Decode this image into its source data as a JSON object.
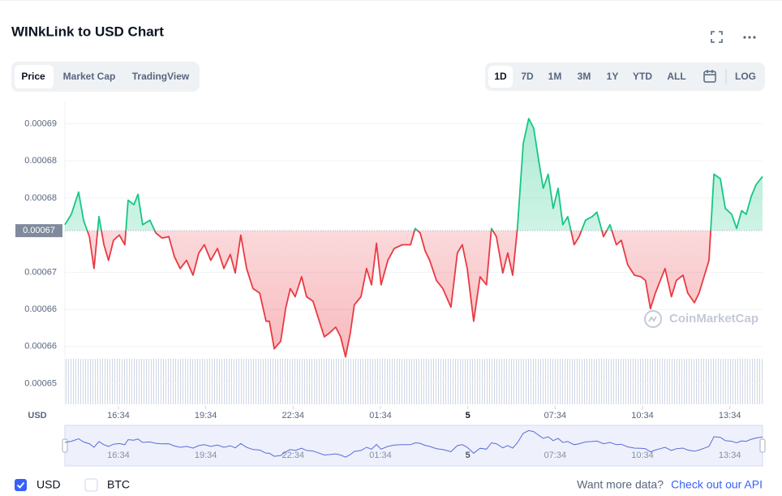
{
  "chart_data": {
    "type": "line",
    "title": "WINkLink to USD Chart",
    "y_label": "USD",
    "x": [
      14.73,
      14.95,
      15.2,
      15.37,
      15.57,
      15.73,
      15.9,
      16.07,
      16.23,
      16.4,
      16.6,
      16.79,
      16.9,
      17.1,
      17.24,
      17.4,
      17.65,
      17.85,
      18.07,
      18.3,
      18.49,
      18.69,
      18.91,
      19.13,
      19.33,
      19.52,
      19.74,
      19.97,
      20.19,
      20.41,
      20.58,
      20.77,
      20.97,
      21.19,
      21.42,
      21.64,
      21.75,
      21.92,
      22.14,
      22.31,
      22.47,
      22.64,
      22.86,
      23.03,
      23.25,
      23.42,
      23.64,
      23.81,
      24.03,
      24.2,
      24.37,
      24.53,
      24.67,
      24.9,
      25.09,
      25.26,
      25.43,
      25.59,
      25.82,
      26.04,
      26.32,
      26.6,
      26.76,
      26.93,
      27.1,
      27.26,
      27.49,
      27.71,
      27.99,
      28.21,
      28.38,
      28.55,
      28.77,
      28.99,
      29.21,
      29.38,
      29.55,
      29.77,
      29.94,
      30.11,
      30.27,
      30.47,
      30.66,
      30.83,
      31.0,
      31.16,
      31.33,
      31.5,
      31.67,
      31.83,
      32.0,
      32.22,
      32.39,
      32.61,
      32.84,
      33.0,
      33.23,
      33.45,
      33.67,
      33.84,
      34.06,
      34.29,
      34.51,
      34.67,
      34.84,
      35.01,
      35.18,
      35.34,
      35.56,
      35.73,
      35.96,
      36.12,
      36.35,
      36.51,
      36.68,
      36.85,
      37.02,
      37.24,
      37.41,
      37.63,
      37.8,
      37.97,
      38.13,
      38.3,
      38.47,
      38.69
    ],
    "series": [
      {
        "name": "Price",
        "up_color": "#16c784",
        "down_color": "#ea3943",
        "values": [
          0.0006714,
          0.0006728,
          0.0006758,
          0.000672,
          0.0006698,
          0.0006655,
          0.0006725,
          0.0006687,
          0.0006666,
          0.0006693,
          0.00067,
          0.0006687,
          0.0006747,
          0.0006741,
          0.0006755,
          0.0006714,
          0.000672,
          0.0006703,
          0.0006696,
          0.0006698,
          0.0006671,
          0.0006655,
          0.0006666,
          0.0006646,
          0.0006676,
          0.0006687,
          0.0006666,
          0.0006682,
          0.0006655,
          0.0006674,
          0.0006649,
          0.00067,
          0.0006655,
          0.0006628,
          0.0006622,
          0.0006584,
          0.0006584,
          0.0006547,
          0.0006557,
          0.0006601,
          0.0006628,
          0.0006617,
          0.0006644,
          0.0006617,
          0.0006611,
          0.000659,
          0.0006563,
          0.0006568,
          0.0006576,
          0.0006563,
          0.0006536,
          0.0006568,
          0.0006606,
          0.0006617,
          0.0006655,
          0.0006633,
          0.0006689,
          0.0006633,
          0.0006666,
          0.0006682,
          0.0006687,
          0.0006687,
          0.0006709,
          0.0006703,
          0.0006679,
          0.0006666,
          0.0006639,
          0.0006628,
          0.0006603,
          0.0006676,
          0.0006687,
          0.0006655,
          0.0006584,
          0.0006644,
          0.0006633,
          0.0006709,
          0.0006698,
          0.0006649,
          0.0006676,
          0.0006646,
          0.0006709,
          0.0006823,
          0.0006857,
          0.0006844,
          0.0006801,
          0.0006763,
          0.0006782,
          0.0006736,
          0.0006763,
          0.0006714,
          0.0006725,
          0.0006687,
          0.0006698,
          0.000672,
          0.0006725,
          0.0006731,
          0.0006698,
          0.0006714,
          0.0006687,
          0.0006693,
          0.000666,
          0.0006646,
          0.0006644,
          0.0006639,
          0.0006601,
          0.0006622,
          0.0006639,
          0.0006655,
          0.0006617,
          0.0006639,
          0.0006646,
          0.0006622,
          0.0006609,
          0.0006622,
          0.0006644,
          0.0006666,
          0.0006782,
          0.0006776,
          0.0006736,
          0.0006728,
          0.0006709,
          0.0006733,
          0.0006728,
          0.0006752,
          0.0006768,
          0.0006779
        ]
      }
    ],
    "reference_line": {
      "value": 0.0006706,
      "label": "0.00067"
    },
    "xlim": [
      14.73,
      38.69
    ],
    "xticks": [
      {
        "value": 16.567,
        "label": "16:34"
      },
      {
        "value": 19.567,
        "label": "19:34"
      },
      {
        "value": 22.567,
        "label": "22:34"
      },
      {
        "value": 25.567,
        "label": "01:34"
      },
      {
        "value": 28.567,
        "label": "5"
      },
      {
        "value": 31.567,
        "label": "07:34"
      },
      {
        "value": 34.567,
        "label": "10:34"
      },
      {
        "value": 37.567,
        "label": "13:34"
      }
    ],
    "ylim": [
      0.000647,
      0.000688
    ],
    "yticks": [
      {
        "value": 0.00065,
        "label": "0.00065"
      },
      {
        "value": 0.000655,
        "label": "0.00066"
      },
      {
        "value": 0.00066,
        "label": "0.00066"
      },
      {
        "value": 0.000665,
        "label": "0.00067"
      },
      {
        "value": 0.000675,
        "label": "0.00068"
      },
      {
        "value": 0.00068,
        "label": "0.00068"
      },
      {
        "value": 0.000685,
        "label": "0.00069"
      }
    ],
    "grid": true,
    "watermark": "CoinMarketCap"
  },
  "ui": {
    "tabs": [
      "Price",
      "Market Cap",
      "TradingView"
    ],
    "ranges": [
      "1D",
      "7D",
      "1M",
      "3M",
      "1Y",
      "YTD",
      "ALL"
    ],
    "log": "LOG",
    "currencies": [
      "USD",
      "BTC"
    ],
    "footer_text": "Want more data?",
    "footer_link": "Check out our API"
  }
}
